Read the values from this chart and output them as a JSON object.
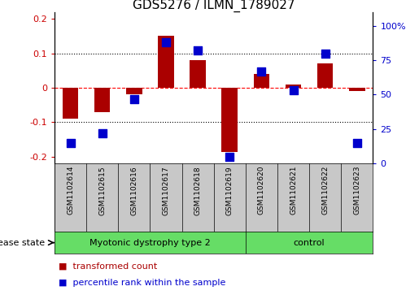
{
  "title": "GDS5276 / ILMN_1789027",
  "samples": [
    "GSM1102614",
    "GSM1102615",
    "GSM1102616",
    "GSM1102617",
    "GSM1102618",
    "GSM1102619",
    "GSM1102620",
    "GSM1102621",
    "GSM1102622",
    "GSM1102623"
  ],
  "red_values": [
    -0.09,
    -0.07,
    -0.02,
    0.15,
    0.08,
    -0.185,
    0.04,
    0.01,
    0.07,
    -0.01
  ],
  "blue_values": [
    15,
    22,
    47,
    88,
    82,
    5,
    67,
    53,
    80,
    15
  ],
  "ylim_left": [
    -0.22,
    0.22
  ],
  "ylim_right": [
    0,
    110
  ],
  "yticks_left": [
    -0.2,
    -0.1,
    0.0,
    0.1,
    0.2
  ],
  "yticks_right": [
    0,
    25,
    50,
    75,
    100
  ],
  "ytick_labels_right": [
    "0",
    "25",
    "50",
    "75",
    "100%"
  ],
  "hlines_dotted": [
    0.1,
    -0.1
  ],
  "hline_dashed": 0.0,
  "disease_groups": [
    {
      "label": "Myotonic dystrophy type 2",
      "start": 0,
      "end": 6
    },
    {
      "label": "control",
      "start": 6,
      "end": 10
    }
  ],
  "disease_state_label": "disease state",
  "legend_red": "transformed count",
  "legend_blue": "percentile rank within the sample",
  "bar_color": "#AA0000",
  "dot_color": "#0000CC",
  "green_color": "#66DD66",
  "gray_color": "#C8C8C8",
  "bar_width": 0.5,
  "dot_size": 45,
  "title_fontsize": 11,
  "tick_fontsize": 8,
  "sample_fontsize": 6.5,
  "legend_fontsize": 8,
  "disease_fontsize": 8
}
